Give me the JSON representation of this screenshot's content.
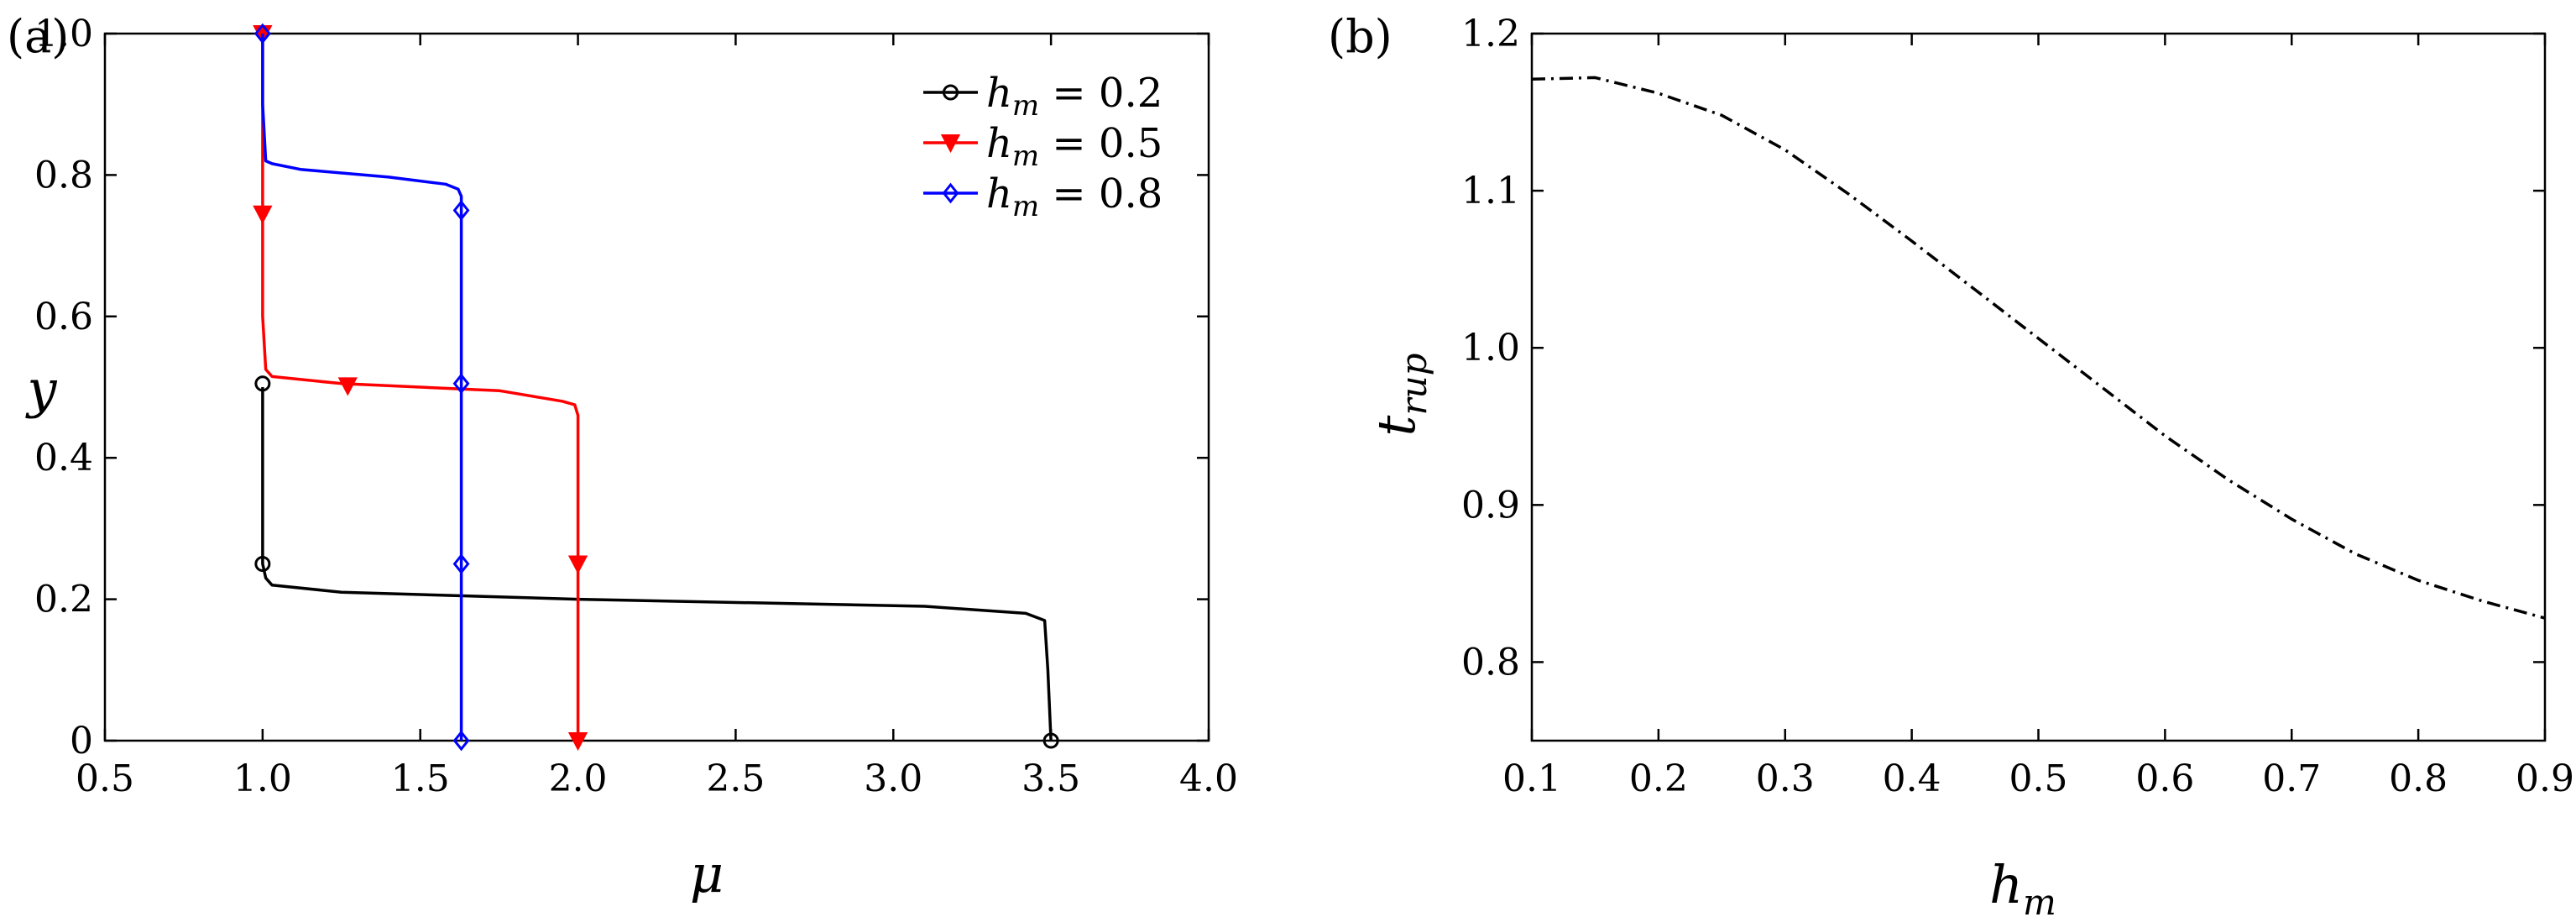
{
  "chart_data": [
    {
      "type": "line",
      "panel_label": "(a)",
      "xlabel": "μ",
      "ylabel": "y",
      "xlim": [
        0.5,
        4.0
      ],
      "ylim": [
        0,
        1.0
      ],
      "xticks": [
        "0.5",
        "1.0",
        "1.5",
        "2.0",
        "2.5",
        "3.0",
        "3.5",
        "4.0"
      ],
      "yticks": [
        "0",
        "0.2",
        "0.4",
        "0.6",
        "0.8",
        "1.0"
      ],
      "grid": false,
      "legend_position": "top-right",
      "series": [
        {
          "name_base": "h",
          "name_sub": "m",
          "name_value": " = 0.2",
          "color": "#000000",
          "marker": "circle",
          "x": [
            3.5,
            3.49,
            3.48,
            3.42,
            3.1,
            2.0,
            1.25,
            1.03,
            1.01,
            1.0,
            1.0,
            1.0
          ],
          "y": [
            0.0,
            0.1,
            0.17,
            0.18,
            0.19,
            0.2,
            0.21,
            0.22,
            0.23,
            0.25,
            0.4,
            0.5
          ],
          "markers_x": [
            3.5,
            1.0,
            1.0
          ],
          "markers_y": [
            0.0,
            0.25,
            0.505
          ]
        },
        {
          "name_base": "h",
          "name_sub": "m",
          "name_value": " = 0.5",
          "color": "#ff0000",
          "marker": "triangle-down",
          "x": [
            2.0,
            2.0,
            2.0,
            1.99,
            1.95,
            1.75,
            1.25,
            1.03,
            1.01,
            1.0,
            1.0,
            1.0
          ],
          "y": [
            0.0,
            0.25,
            0.46,
            0.475,
            0.48,
            0.495,
            0.505,
            0.515,
            0.525,
            0.6,
            0.75,
            1.0
          ],
          "markers_x": [
            2.0,
            2.0,
            1.27,
            1.0,
            1.0
          ],
          "markers_y": [
            0.0,
            0.25,
            0.502,
            0.745,
            1.0
          ]
        },
        {
          "name_base": "h",
          "name_sub": "m",
          "name_value": " = 0.8",
          "color": "#0000ff",
          "marker": "diamond",
          "x": [
            1.63,
            1.63,
            1.63,
            1.62,
            1.58,
            1.4,
            1.12,
            1.03,
            1.01,
            1.0,
            1.0
          ],
          "y": [
            0.0,
            0.5,
            0.77,
            0.78,
            0.787,
            0.797,
            0.808,
            0.816,
            0.82,
            0.9,
            1.0
          ],
          "markers_x": [
            1.63,
            1.63,
            1.63,
            1.63,
            1.0
          ],
          "markers_y": [
            0.0,
            0.25,
            0.505,
            0.75,
            1.0
          ]
        }
      ]
    },
    {
      "type": "line",
      "panel_label": "(b)",
      "xlabel_base": "h",
      "xlabel_sub": "m",
      "ylabel_base": "t",
      "ylabel_sub": "rup",
      "xlim": [
        0.1,
        0.9
      ],
      "ylim": [
        0.75,
        1.2
      ],
      "xticks": [
        "0.1",
        "0.2",
        "0.3",
        "0.4",
        "0.5",
        "0.6",
        "0.7",
        "0.8",
        "0.9"
      ],
      "yticks": [
        "0.8",
        "0.9",
        "1.0",
        "1.1",
        "1.2"
      ],
      "grid": false,
      "series": [
        {
          "color": "#000000",
          "line_style": "dash-dot",
          "x": [
            0.1,
            0.15,
            0.2,
            0.25,
            0.3,
            0.35,
            0.4,
            0.45,
            0.5,
            0.55,
            0.6,
            0.65,
            0.7,
            0.75,
            0.8,
            0.85,
            0.9
          ],
          "y": [
            1.171,
            1.172,
            1.162,
            1.148,
            1.126,
            1.098,
            1.068,
            1.037,
            1.006,
            0.975,
            0.944,
            0.916,
            0.891,
            0.869,
            0.852,
            0.839,
            0.828
          ]
        }
      ]
    }
  ]
}
